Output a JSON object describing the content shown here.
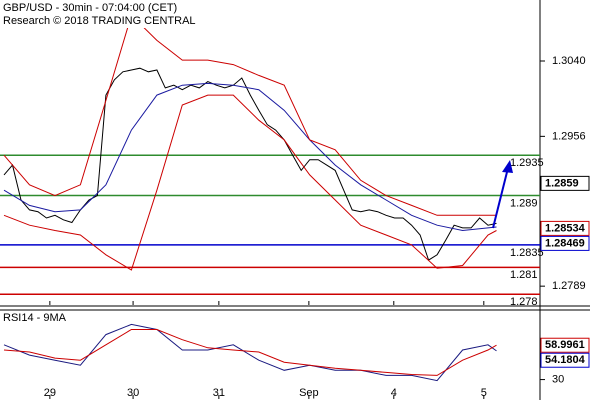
{
  "chart_data": [
    {
      "type": "line",
      "title": "GBP/USD - 30min - 07:04:00 (CET)",
      "subtitle": "Research © 2018 TRADING CENTRAL",
      "x": [
        0,
        1,
        2,
        3,
        4,
        5,
        6,
        7,
        8,
        9,
        10,
        11,
        12,
        13,
        14,
        15,
        16,
        17,
        18,
        19,
        20,
        21,
        22,
        23,
        24,
        25,
        26,
        27,
        28,
        29,
        30,
        31,
        32,
        33,
        34,
        35,
        36,
        37,
        38,
        39,
        40,
        41,
        42,
        43,
        44,
        45,
        46,
        47,
        48,
        49,
        50,
        51,
        52,
        53,
        54,
        55,
        56,
        57,
        58
      ],
      "xlim": [
        0,
        63
      ],
      "xticks": [
        5.4,
        15.2,
        25.3,
        35.9,
        45.9,
        56.5
      ],
      "ylim": [
        1.2768,
        1.3108
      ],
      "yticks": [
        {
          "value": 1.304,
          "label": "1.3040"
        },
        1.2956,
        1.2789
      ],
      "series": [
        {
          "color": "#000000",
          "values": [
            1.2913,
            1.2924,
            1.2885,
            1.2874,
            1.2872,
            1.2865,
            1.2868,
            1.2863,
            1.286,
            1.2874,
            1.2885,
            1.289,
            1.3002,
            1.3019,
            1.3028,
            1.303,
            1.3032,
            1.3028,
            1.303,
            1.301,
            1.3013,
            1.3008,
            1.3013,
            1.301,
            1.3017,
            1.3013,
            1.301,
            1.3013,
            1.3021,
            1.3002,
            1.2985,
            1.2969,
            1.2963,
            1.2952,
            1.2935,
            1.2918,
            1.293,
            1.293,
            1.2924,
            1.2918,
            1.2896,
            1.2874,
            1.2872,
            1.2874,
            1.2872,
            1.2868,
            1.2865,
            1.2865,
            1.2857,
            1.2846,
            1.2818,
            1.2824,
            1.284,
            1.2857,
            1.2854,
            1.2854,
            1.2865,
            1.2857,
            1.2859
          ]
        },
        {
          "color": "#1a1aa0",
          "x": [
            0,
            3,
            6,
            9,
            12,
            15,
            18,
            21,
            24,
            27,
            30,
            33,
            36,
            39,
            42,
            45,
            48,
            51,
            54,
            57,
            58
          ],
          "values": [
            1.2896,
            1.2879,
            1.2872,
            1.2874,
            1.2902,
            1.2963,
            1.3002,
            1.3013,
            1.3015,
            1.3013,
            1.3008,
            1.2985,
            1.2952,
            1.2924,
            1.2902,
            1.2885,
            1.2868,
            1.2857,
            1.2851,
            1.2854,
            1.2855
          ]
        },
        {
          "color": "#cc0000",
          "x": [
            0,
            3,
            6,
            9,
            12,
            15,
            18,
            21,
            24,
            27,
            30,
            33,
            36,
            39,
            42,
            45,
            48,
            51,
            54,
            57,
            58
          ],
          "values": [
            1.2935,
            1.2902,
            1.289,
            1.2902,
            1.2996,
            1.3091,
            1.3063,
            1.3041,
            1.3041,
            1.3036,
            1.3024,
            1.3013,
            1.2952,
            1.2941,
            1.2907,
            1.289,
            1.2879,
            1.2868,
            1.2868,
            1.2868,
            1.2868
          ]
        },
        {
          "color": "#cc0000",
          "x": [
            0,
            3,
            6,
            9,
            12,
            15,
            18,
            21,
            24,
            27,
            30,
            33,
            36,
            39,
            42,
            45,
            48,
            51,
            54,
            57,
            58
          ],
          "values": [
            1.2868,
            1.2857,
            1.2851,
            1.2846,
            1.2824,
            1.2807,
            1.2896,
            1.2991,
            1.3002,
            1.3002,
            1.2974,
            1.2952,
            1.2913,
            1.2885,
            1.2857,
            1.2846,
            1.2835,
            1.2809,
            1.2812,
            1.2846,
            1.2851
          ]
        }
      ],
      "levels": [
        {
          "value": 1.2935,
          "color": "#2e8b2e"
        },
        {
          "value": 1.289,
          "color": "#2e8b2e"
        },
        {
          "value": 1.2835,
          "color": "#0000cc"
        },
        {
          "value": 1.281,
          "color": "#cc0000"
        },
        {
          "value": 1.278,
          "color": "#cc0000"
        }
      ],
      "price_labels": [
        {
          "value": 1.2859,
          "color": "#000000"
        },
        {
          "value": 1.28534,
          "color": "#cc0000"
        },
        {
          "value": 1.28469,
          "color": "#0000cc"
        }
      ]
    },
    {
      "type": "line",
      "title": "RSI14 - 9MA",
      "xlim": [
        0,
        63
      ],
      "xticks": [
        {
          "value": 5.4,
          "label": "29"
        },
        {
          "value": 15.2,
          "label": "30"
        },
        {
          "value": 25.3,
          "label": "31"
        },
        {
          "value": 35.9,
          "label": "Sep"
        },
        {
          "value": 45.9,
          "label": "4"
        },
        {
          "value": 56.5,
          "label": "5"
        }
      ],
      "ylim": [
        13.6,
        87.9
      ],
      "yticks": [
        30
      ],
      "series": [
        {
          "color": "#1a1a80",
          "x": [
            0,
            3,
            6,
            9,
            12,
            15,
            18,
            21,
            24,
            27,
            30,
            33,
            36,
            39,
            42,
            45,
            48,
            51,
            54,
            57,
            58
          ],
          "values": [
            59.4,
            50.7,
            46.4,
            42.1,
            68.0,
            76.6,
            72.3,
            55.0,
            55.0,
            59.4,
            46.4,
            37.8,
            42.1,
            37.8,
            37.8,
            33.5,
            33.5,
            29.1,
            55.0,
            59.4,
            54.2
          ]
        },
        {
          "color": "#cc0000",
          "x": [
            0,
            3,
            6,
            9,
            12,
            15,
            18,
            21,
            24,
            27,
            30,
            33,
            36,
            39,
            42,
            45,
            48,
            51,
            54,
            57,
            58
          ],
          "values": [
            55.0,
            53.3,
            48.1,
            46.4,
            59.4,
            72.3,
            72.3,
            63.7,
            56.8,
            55.0,
            53.3,
            44.7,
            42.1,
            39.5,
            37.8,
            36.1,
            34.3,
            33.5,
            46.4,
            55.0,
            59.0
          ]
        }
      ],
      "price_labels": [
        {
          "value": 58.9961,
          "color": "#cc0000"
        },
        {
          "value": 54.1804,
          "color": "#0000cc"
        }
      ]
    }
  ]
}
